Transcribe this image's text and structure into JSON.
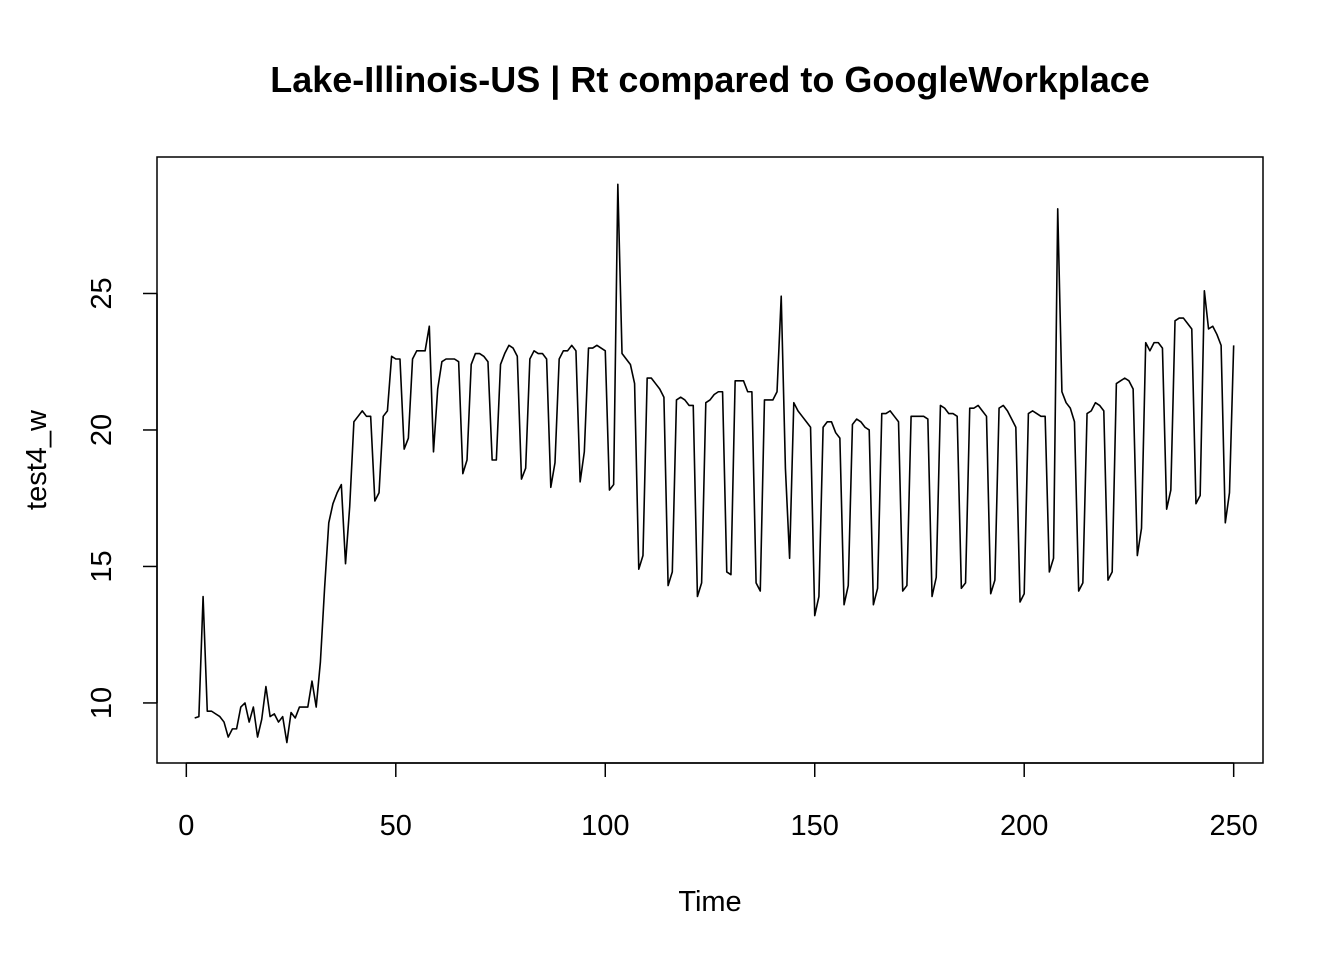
{
  "chart_data": {
    "type": "line",
    "title": "Lake-Illinois-US | Rt compared to GoogleWorkplace",
    "xlabel": "Time",
    "ylabel": "test4_w",
    "xlim": [
      -7,
      257
    ],
    "ylim": [
      7.8,
      30
    ],
    "x_ticks": [
      0,
      50,
      100,
      150,
      200,
      250
    ],
    "y_ticks": [
      10,
      15,
      20,
      25
    ],
    "grid": false,
    "legend": "none",
    "line_color": "#000000",
    "series": [
      {
        "x_start": 2,
        "values": [
          9.45,
          9.5,
          13.9,
          9.7,
          9.7,
          9.6,
          9.5,
          9.3,
          8.75,
          9.05,
          9.05,
          9.85,
          10.0,
          9.3,
          9.85,
          8.75,
          9.4,
          10.6,
          9.5,
          9.6,
          9.3,
          9.5,
          8.55,
          9.65,
          9.45,
          9.85,
          9.85,
          9.85,
          10.8,
          9.85,
          11.5,
          14.2,
          16.6,
          17.3,
          17.7,
          18.0,
          15.1,
          17.2,
          20.3,
          20.5,
          20.7,
          20.5,
          20.5,
          17.4,
          17.7,
          20.5,
          20.7,
          22.7,
          22.6,
          22.6,
          19.3,
          19.7,
          22.6,
          22.9,
          22.9,
          22.9,
          23.8,
          19.2,
          21.5,
          22.5,
          22.6,
          22.6,
          22.6,
          22.5,
          18.4,
          18.9,
          22.4,
          22.8,
          22.8,
          22.7,
          22.5,
          18.9,
          18.9,
          22.4,
          22.8,
          23.1,
          23.0,
          22.7,
          18.2,
          18.6,
          22.6,
          22.9,
          22.8,
          22.8,
          22.6,
          17.9,
          18.8,
          22.6,
          22.9,
          22.9,
          23.1,
          22.9,
          18.1,
          19.2,
          23.0,
          23.0,
          23.1,
          23.0,
          22.9,
          17.8,
          18.0,
          29.0,
          22.8,
          22.6,
          22.4,
          21.7,
          14.9,
          15.4,
          21.9,
          21.9,
          21.7,
          21.5,
          21.2,
          14.3,
          14.8,
          21.1,
          21.2,
          21.1,
          20.9,
          20.9,
          13.9,
          14.4,
          21.0,
          21.1,
          21.3,
          21.4,
          21.4,
          14.8,
          14.7,
          21.8,
          21.8,
          21.8,
          21.4,
          21.4,
          14.4,
          14.1,
          21.1,
          21.1,
          21.1,
          21.4,
          24.9,
          18.6,
          15.3,
          21.0,
          20.7,
          20.5,
          20.3,
          20.1,
          13.2,
          13.9,
          20.1,
          20.3,
          20.3,
          19.9,
          19.7,
          13.6,
          14.3,
          20.2,
          20.4,
          20.3,
          20.1,
          20.0,
          13.6,
          14.2,
          20.6,
          20.6,
          20.7,
          20.5,
          20.3,
          14.1,
          14.3,
          20.5,
          20.5,
          20.5,
          20.5,
          20.4,
          13.9,
          14.6,
          20.9,
          20.8,
          20.6,
          20.6,
          20.5,
          14.2,
          14.4,
          20.8,
          20.8,
          20.9,
          20.7,
          20.5,
          14.0,
          14.5,
          20.8,
          20.9,
          20.7,
          20.4,
          20.1,
          13.7,
          14.0,
          20.6,
          20.7,
          20.6,
          20.5,
          20.5,
          14.8,
          15.3,
          28.1,
          21.4,
          21.0,
          20.8,
          20.3,
          14.1,
          14.4,
          20.6,
          20.7,
          21.0,
          20.9,
          20.7,
          14.5,
          14.8,
          21.7,
          21.8,
          21.9,
          21.8,
          21.5,
          15.4,
          16.4,
          23.2,
          22.9,
          23.2,
          23.2,
          23.0,
          17.1,
          17.8,
          24.0,
          24.1,
          24.1,
          23.9,
          23.7,
          17.3,
          17.6,
          25.1,
          23.7,
          23.8,
          23.5,
          23.1,
          16.6,
          17.7,
          23.1
        ]
      }
    ]
  }
}
